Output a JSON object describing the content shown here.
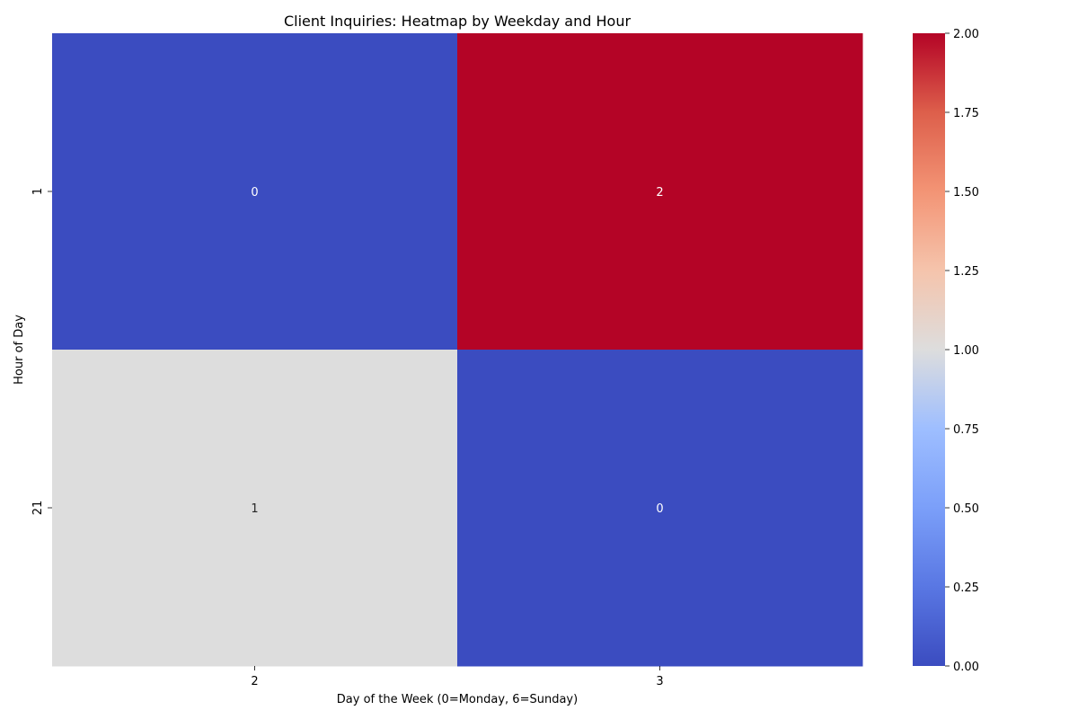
{
  "chart_data": {
    "type": "heatmap",
    "title": "Client Inquiries: Heatmap by Weekday and Hour",
    "xlabel": "Day of the Week (0=Monday, 6=Sunday)",
    "ylabel": "Hour of Day",
    "x_categories": [
      "2",
      "3"
    ],
    "y_categories": [
      "1",
      "21"
    ],
    "values": [
      [
        0,
        2
      ],
      [
        1,
        0
      ]
    ],
    "colormap": "coolwarm",
    "vmin": 0,
    "vmax": 2,
    "colorbar_ticks": [
      "0.00",
      "0.25",
      "0.50",
      "0.75",
      "1.00",
      "1.25",
      "1.50",
      "1.75",
      "2.00"
    ],
    "colors": {
      "low": "#3b4cc0",
      "mid": "#dddddd",
      "high": "#b40426"
    }
  }
}
